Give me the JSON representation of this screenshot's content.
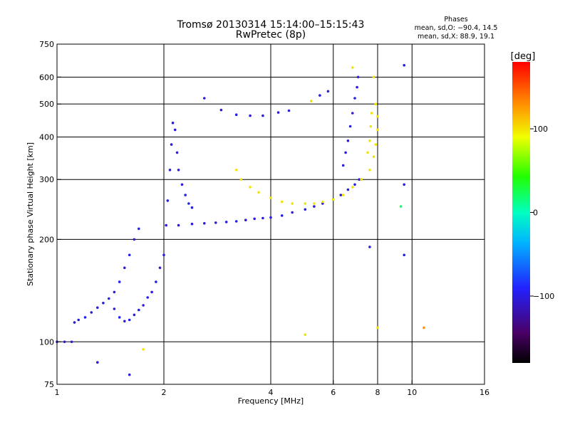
{
  "chart_data": {
    "type": "scatter",
    "title": "Tromsø 20130314 15:14:00–15:15:43",
    "subtitle": "RwPretec (8p)",
    "xlabel": "Frequency [MHz]",
    "ylabel": "Stationary phase Virtual Height [km]",
    "x_scale": "log",
    "y_scale": "log",
    "xlim": [
      1,
      16
    ],
    "ylim": [
      75,
      750
    ],
    "x_ticks": [
      1,
      2,
      4,
      6,
      8,
      10,
      16
    ],
    "y_ticks": [
      75,
      100,
      200,
      300,
      400,
      500,
      600,
      750
    ],
    "x_gridlines": [
      2,
      4,
      6,
      8,
      10
    ],
    "y_gridlines": [
      100,
      200,
      300,
      400,
      500,
      600
    ],
    "grid": true,
    "stats": {
      "heading": "Phases",
      "line_o": "mean, sd,O: −90.4, 14.5",
      "line_x": "mean, sd,X:  88.9, 19.1"
    },
    "colorbar": {
      "unit": "[deg]",
      "range": [
        -180,
        180
      ],
      "ticks": [
        100,
        0,
        -100
      ]
    },
    "series": [
      {
        "trace": [
          [
            1.0,
            100,
            -100
          ],
          [
            1.05,
            100,
            -100
          ],
          [
            1.1,
            100,
            -95
          ],
          [
            1.12,
            114,
            -100
          ],
          [
            1.15,
            116,
            -100
          ],
          [
            1.2,
            118,
            -95
          ],
          [
            1.25,
            122,
            -100
          ],
          [
            1.3,
            126,
            -95
          ],
          [
            1.35,
            130,
            -100
          ],
          [
            1.4,
            134,
            -95
          ],
          [
            1.45,
            140,
            -100
          ],
          [
            1.5,
            150,
            -95
          ],
          [
            1.55,
            165,
            -100
          ],
          [
            1.6,
            180,
            -95
          ],
          [
            1.65,
            200,
            -100
          ],
          [
            1.7,
            215,
            -95
          ],
          [
            1.45,
            125,
            -100
          ],
          [
            1.5,
            118,
            -95
          ],
          [
            1.55,
            115,
            -100
          ],
          [
            1.6,
            116,
            -95
          ],
          [
            1.65,
            120,
            -100
          ],
          [
            1.7,
            124,
            -95
          ],
          [
            1.75,
            128,
            -100
          ],
          [
            1.8,
            135,
            -95
          ],
          [
            1.85,
            140,
            -100
          ],
          [
            1.9,
            150,
            -95
          ],
          [
            1.95,
            165,
            -100
          ],
          [
            2.0,
            180,
            -100
          ],
          [
            2.03,
            220,
            -100
          ],
          [
            2.05,
            260,
            -100
          ],
          [
            2.08,
            320,
            -100
          ],
          [
            2.1,
            380,
            -100
          ],
          [
            2.12,
            440,
            -100
          ],
          [
            2.15,
            420,
            -100
          ],
          [
            2.18,
            360,
            -100
          ],
          [
            2.2,
            320,
            -100
          ],
          [
            2.25,
            290,
            -100
          ],
          [
            2.3,
            270,
            -95
          ],
          [
            2.35,
            255,
            -95
          ],
          [
            2.4,
            248,
            -100
          ],
          [
            2.2,
            220,
            -100
          ],
          [
            2.4,
            222,
            -100
          ],
          [
            2.6,
            223,
            -100
          ],
          [
            2.8,
            224,
            -100
          ],
          [
            3.0,
            225,
            -100
          ],
          [
            3.2,
            226,
            -100
          ],
          [
            3.4,
            228,
            -100
          ],
          [
            3.6,
            230,
            -100
          ],
          [
            3.8,
            231,
            -100
          ],
          [
            4.0,
            232,
            -100
          ],
          [
            4.3,
            235,
            -100
          ],
          [
            4.6,
            240,
            -100
          ],
          [
            5.0,
            245,
            -100
          ],
          [
            5.3,
            250,
            -100
          ],
          [
            5.6,
            255,
            -100
          ],
          [
            6.0,
            262,
            -100
          ],
          [
            6.3,
            270,
            -100
          ],
          [
            6.6,
            280,
            -100
          ],
          [
            6.9,
            290,
            -100
          ],
          [
            7.1,
            300,
            -100
          ],
          [
            6.4,
            330,
            -100
          ],
          [
            6.5,
            360,
            -100
          ],
          [
            6.6,
            390,
            -100
          ],
          [
            6.7,
            430,
            -100
          ],
          [
            6.8,
            470,
            -100
          ],
          [
            6.9,
            520,
            -100
          ],
          [
            7.0,
            560,
            -100
          ],
          [
            7.05,
            600,
            -100
          ],
          [
            2.6,
            520,
            -100
          ],
          [
            2.9,
            480,
            -100
          ],
          [
            3.2,
            465,
            -100
          ],
          [
            3.5,
            462,
            -100
          ],
          [
            3.8,
            462,
            -100
          ],
          [
            4.2,
            472,
            -100
          ],
          [
            4.5,
            478,
            -100
          ],
          [
            5.5,
            530,
            -100
          ],
          [
            5.8,
            545,
            -100
          ],
          [
            3.2,
            320,
            100
          ],
          [
            3.3,
            300,
            100
          ],
          [
            3.5,
            285,
            100
          ],
          [
            3.7,
            275,
            100
          ],
          [
            4.0,
            265,
            100
          ],
          [
            4.3,
            258,
            100
          ],
          [
            4.6,
            255,
            100
          ],
          [
            5.0,
            255,
            100
          ],
          [
            5.3,
            255,
            100
          ],
          [
            5.6,
            258,
            100
          ],
          [
            6.0,
            262,
            100
          ],
          [
            6.4,
            270,
            100
          ],
          [
            6.8,
            285,
            100
          ],
          [
            7.2,
            300,
            100
          ],
          [
            7.6,
            320,
            100
          ],
          [
            7.8,
            350,
            100
          ],
          [
            7.9,
            380,
            100
          ],
          [
            8.0,
            420,
            100
          ],
          [
            8.0,
            460,
            100
          ],
          [
            7.9,
            500,
            100
          ],
          [
            7.5,
            360,
            100
          ],
          [
            7.6,
            390,
            100
          ],
          [
            7.65,
            430,
            100
          ],
          [
            7.7,
            470,
            100
          ],
          [
            5.2,
            510,
            100
          ],
          [
            6.8,
            640,
            100
          ],
          [
            7.8,
            600,
            100
          ],
          [
            9.5,
            650,
            -100
          ],
          [
            9.5,
            290,
            -100
          ],
          [
            9.3,
            250,
            20
          ],
          [
            9.5,
            180,
            -100
          ],
          [
            10.8,
            110,
            130
          ],
          [
            7.6,
            190,
            -100
          ],
          [
            8.0,
            110,
            100
          ],
          [
            5.0,
            105,
            100
          ],
          [
            1.3,
            87,
            -100
          ],
          [
            1.6,
            80,
            -100
          ],
          [
            1.75,
            95,
            100
          ]
        ]
      }
    ]
  }
}
